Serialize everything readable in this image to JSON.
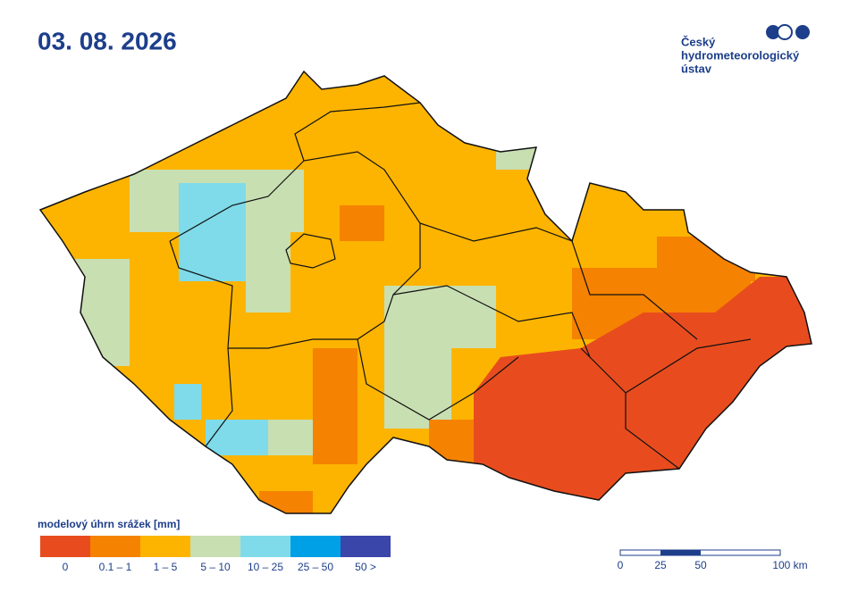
{
  "header": {
    "title": "03. 08. 2026"
  },
  "logo": {
    "lines": [
      "Český",
      "hydrometeorologický",
      "ústav"
    ]
  },
  "legend": {
    "title": "modelový úhrn srážek [mm]",
    "items": [
      {
        "label": "0",
        "color": "#e84c1e"
      },
      {
        "label": "0.1 – 1",
        "color": "#f58200"
      },
      {
        "label": "1 – 5",
        "color": "#fdb400"
      },
      {
        "label": "5 – 10",
        "color": "#c8dfb2"
      },
      {
        "label": "10 – 25",
        "color": "#7fdbe9"
      },
      {
        "label": "25 – 50",
        "color": "#00a0e6"
      },
      {
        "label": "50 >",
        "color": "#3b46aa"
      }
    ]
  },
  "scale_bar": {
    "labels": [
      "0",
      "25",
      "50",
      "100 km"
    ]
  }
}
